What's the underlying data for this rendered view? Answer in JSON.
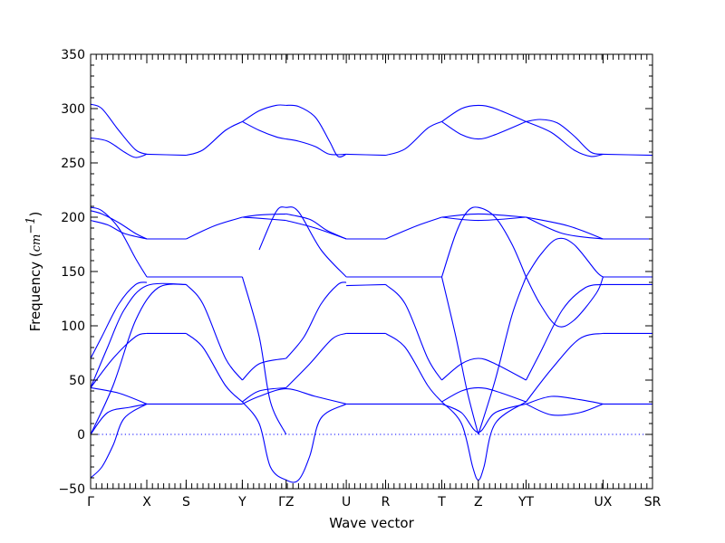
{
  "chart_data": {
    "type": "line",
    "title": "",
    "xlabel": "Wave vector",
    "ylabel_text": "Frequency (",
    "ylabel_unit_base": "cm",
    "ylabel_unit_exp": "−1",
    "ylabel_close": ")",
    "ylim": [
      -50,
      350
    ],
    "yticks": [
      -50,
      0,
      50,
      100,
      150,
      200,
      250,
      300,
      350
    ],
    "ytick_labels": [
      "−50",
      "0",
      "50",
      "100",
      "150",
      "200",
      "250",
      "300",
      "350"
    ],
    "xlim": [
      0,
      1
    ],
    "k_points": [
      {
        "label": "Γ",
        "x": 0.0
      },
      {
        "label": "X",
        "x": 0.1
      },
      {
        "label": "S",
        "x": 0.17
      },
      {
        "label": "Y",
        "x": 0.27
      },
      {
        "label": "ΓZ",
        "x": 0.348
      },
      {
        "label": "U",
        "x": 0.455
      },
      {
        "label": "R",
        "x": 0.525
      },
      {
        "label": "T",
        "x": 0.625
      },
      {
        "label": "Z",
        "x": 0.69
      },
      {
        "label": "YT",
        "x": 0.775
      },
      {
        "label": "UX",
        "x": 0.912
      },
      {
        "label": "SR",
        "x": 1.0
      }
    ],
    "grid": false,
    "series": [
      {
        "x": [
          0,
          0.02,
          0.05,
          0.08,
          0.1
        ],
        "y": [
          304,
          300,
          280,
          262,
          258
        ]
      },
      {
        "x": [
          0,
          0.03,
          0.06,
          0.08,
          0.1
        ],
        "y": [
          273,
          270,
          260,
          255,
          258
        ]
      },
      {
        "x": [
          0.1,
          0.17
        ],
        "y": [
          258,
          257
        ]
      },
      {
        "x": [
          0.17,
          0.2,
          0.24,
          0.27
        ],
        "y": [
          257,
          262,
          280,
          288
        ]
      },
      {
        "x": [
          0.27,
          0.3,
          0.33,
          0.348
        ],
        "y": [
          288,
          298,
          303,
          303
        ]
      },
      {
        "x": [
          0.27,
          0.3,
          0.33,
          0.348
        ],
        "y": [
          288,
          280,
          274,
          272
        ]
      },
      {
        "x": [
          0.348,
          0.37,
          0.4,
          0.425,
          0.44,
          0.455
        ],
        "y": [
          303,
          302,
          292,
          270,
          256,
          258
        ]
      },
      {
        "x": [
          0.348,
          0.37,
          0.4,
          0.425,
          0.455
        ],
        "y": [
          272,
          270,
          265,
          258,
          258
        ]
      },
      {
        "x": [
          0.455,
          0.525
        ],
        "y": [
          258,
          257
        ]
      },
      {
        "x": [
          0.525,
          0.56,
          0.6,
          0.625
        ],
        "y": [
          257,
          263,
          282,
          288
        ]
      },
      {
        "x": [
          0.625,
          0.66,
          0.69,
          0.72,
          0.775
        ],
        "y": [
          288,
          300,
          303,
          300,
          288
        ]
      },
      {
        "x": [
          0.625,
          0.66,
          0.69,
          0.72,
          0.775
        ],
        "y": [
          288,
          276,
          272,
          276,
          288
        ]
      },
      {
        "x": [
          0.775,
          0.8,
          0.83,
          0.86,
          0.89,
          0.912
        ],
        "y": [
          288,
          290,
          287,
          275,
          260,
          258
        ]
      },
      {
        "x": [
          0.775,
          0.82,
          0.86,
          0.89,
          0.912
        ],
        "y": [
          288,
          278,
          262,
          256,
          258
        ]
      },
      {
        "x": [
          0.912,
          1.0
        ],
        "y": [
          258,
          257
        ]
      },
      {
        "x": [
          0,
          0.02,
          0.05,
          0.08,
          0.1
        ],
        "y": [
          209,
          206,
          190,
          162,
          145
        ]
      },
      {
        "x": [
          0,
          0.02,
          0.05,
          0.08,
          0.1
        ],
        "y": [
          206,
          203,
          195,
          185,
          180
        ]
      },
      {
        "x": [
          0,
          0.03,
          0.06,
          0.1
        ],
        "y": [
          197,
          193,
          185,
          180
        ]
      },
      {
        "x": [
          0.1,
          0.17
        ],
        "y": [
          180,
          180
        ]
      },
      {
        "x": [
          0.17,
          0.22,
          0.27
        ],
        "y": [
          180,
          192,
          200
        ]
      },
      {
        "x": [
          0.27,
          0.3,
          0.348
        ],
        "y": [
          200,
          202,
          203
        ]
      },
      {
        "x": [
          0.27,
          0.3,
          0.348
        ],
        "y": [
          200,
          199,
          197
        ]
      },
      {
        "x": [
          0.348,
          0.39,
          0.42,
          0.455
        ],
        "y": [
          203,
          198,
          188,
          180
        ]
      },
      {
        "x": [
          0.348,
          0.4,
          0.455
        ],
        "y": [
          197,
          190,
          180
        ]
      },
      {
        "x": [
          0.455,
          0.525
        ],
        "y": [
          180,
          180
        ]
      },
      {
        "x": [
          0.525,
          0.58,
          0.625
        ],
        "y": [
          180,
          192,
          200
        ]
      },
      {
        "x": [
          0.625,
          0.69,
          0.775
        ],
        "y": [
          200,
          203,
          200
        ]
      },
      {
        "x": [
          0.625,
          0.69,
          0.775
        ],
        "y": [
          200,
          197,
          200
        ]
      },
      {
        "x": [
          0.775,
          0.85,
          0.912
        ],
        "y": [
          200,
          192,
          180
        ]
      },
      {
        "x": [
          0.775,
          0.84,
          0.912
        ],
        "y": [
          200,
          185,
          180
        ]
      },
      {
        "x": [
          0.912,
          1.0
        ],
        "y": [
          180,
          180
        ]
      },
      {
        "x": [
          0.1,
          0.17,
          0.27
        ],
        "y": [
          145,
          145,
          145
        ]
      },
      {
        "x": [
          0.27,
          0.3,
          0.32,
          0.348
        ],
        "y": [
          145,
          90,
          30,
          0
        ]
      },
      {
        "x": [
          0.3,
          0.33,
          0.348,
          0.37,
          0.41,
          0.455
        ],
        "y": [
          170,
          205,
          209,
          205,
          170,
          145
        ]
      },
      {
        "x": [
          0.455,
          0.525,
          0.625
        ],
        "y": [
          145,
          145,
          145
        ]
      },
      {
        "x": [
          0.625,
          0.65,
          0.67,
          0.69,
          0.72,
          0.75,
          0.775
        ],
        "y": [
          145,
          185,
          205,
          209,
          200,
          175,
          145
        ]
      },
      {
        "x": [
          0.625,
          0.65,
          0.67,
          0.69
        ],
        "y": [
          145,
          90,
          40,
          0
        ]
      },
      {
        "x": [
          0.69,
          0.72,
          0.75,
          0.775
        ],
        "y": [
          0,
          50,
          110,
          145
        ]
      },
      {
        "x": [
          0.775,
          0.8,
          0.83,
          0.86,
          0.9,
          0.912
        ],
        "y": [
          145,
          165,
          180,
          175,
          150,
          145
        ]
      },
      {
        "x": [
          0.775,
          0.8,
          0.83,
          0.86,
          0.9,
          0.912
        ],
        "y": [
          145,
          120,
          100,
          105,
          130,
          145
        ]
      },
      {
        "x": [
          0.912,
          1.0
        ],
        "y": [
          145,
          145
        ]
      },
      {
        "x": [
          0,
          0.02,
          0.05,
          0.08,
          0.1
        ],
        "y": [
          70,
          90,
          120,
          138,
          140
        ]
      },
      {
        "x": [
          0,
          0.03,
          0.06,
          0.1,
          0.17
        ],
        "y": [
          43,
          80,
          115,
          137,
          138
        ]
      },
      {
        "x": [
          0,
          0.04,
          0.08,
          0.12,
          0.17
        ],
        "y": [
          0,
          45,
          105,
          135,
          138
        ]
      },
      {
        "x": [
          0.17,
          0.2,
          0.24,
          0.27
        ],
        "y": [
          138,
          120,
          70,
          50
        ]
      },
      {
        "x": [
          0.27,
          0.3,
          0.348
        ],
        "y": [
          50,
          65,
          70
        ]
      },
      {
        "x": [
          0.348,
          0.38,
          0.41,
          0.44,
          0.455
        ],
        "y": [
          70,
          90,
          120,
          138,
          140
        ]
      },
      {
        "x": [
          0.455,
          0.525
        ],
        "y": [
          137,
          138
        ]
      },
      {
        "x": [
          0.525,
          0.56,
          0.6,
          0.625
        ],
        "y": [
          138,
          120,
          70,
          50
        ]
      },
      {
        "x": [
          0.625,
          0.66,
          0.69,
          0.72,
          0.775
        ],
        "y": [
          50,
          65,
          70,
          65,
          50
        ]
      },
      {
        "x": [
          0.775,
          0.8,
          0.84,
          0.88,
          0.912
        ],
        "y": [
          50,
          75,
          115,
          135,
          138
        ]
      },
      {
        "x": [
          0.912,
          1.0
        ],
        "y": [
          138,
          138
        ]
      },
      {
        "x": [
          0,
          0.04,
          0.08,
          0.1
        ],
        "y": [
          43,
          70,
          90,
          93
        ]
      },
      {
        "x": [
          0.1,
          0.17
        ],
        "y": [
          93,
          93
        ]
      },
      {
        "x": [
          0.17,
          0.2,
          0.24,
          0.27
        ],
        "y": [
          93,
          80,
          45,
          30
        ]
      },
      {
        "x": [
          0.27,
          0.3,
          0.348
        ],
        "y": [
          30,
          40,
          43
        ]
      },
      {
        "x": [
          0.348,
          0.39,
          0.43,
          0.455
        ],
        "y": [
          43,
          65,
          88,
          93
        ]
      },
      {
        "x": [
          0.455,
          0.525
        ],
        "y": [
          93,
          93
        ]
      },
      {
        "x": [
          0.525,
          0.56,
          0.6,
          0.625
        ],
        "y": [
          93,
          80,
          45,
          30
        ]
      },
      {
        "x": [
          0.625,
          0.66,
          0.69,
          0.72,
          0.775
        ],
        "y": [
          30,
          40,
          43,
          40,
          30
        ]
      },
      {
        "x": [
          0.775,
          0.82,
          0.87,
          0.912
        ],
        "y": [
          30,
          60,
          88,
          93
        ]
      },
      {
        "x": [
          0.912,
          1.0
        ],
        "y": [
          93,
          93
        ]
      },
      {
        "x": [
          0,
          0.05,
          0.1
        ],
        "y": [
          43,
          38,
          28
        ]
      },
      {
        "x": [
          0.1,
          0.17,
          0.27
        ],
        "y": [
          28,
          28,
          28
        ]
      },
      {
        "x": [
          0.27,
          0.3,
          0.348,
          0.4,
          0.455
        ],
        "y": [
          28,
          35,
          42,
          35,
          28
        ]
      },
      {
        "x": [
          0.455,
          0.525,
          0.625
        ],
        "y": [
          28,
          28,
          28
        ]
      },
      {
        "x": [
          0.625,
          0.66,
          0.69,
          0.72,
          0.775
        ],
        "y": [
          28,
          20,
          2,
          20,
          28
        ]
      },
      {
        "x": [
          0.775,
          0.82,
          0.87,
          0.912
        ],
        "y": [
          28,
          35,
          32,
          28
        ]
      },
      {
        "x": [
          0.775,
          0.82,
          0.87,
          0.912
        ],
        "y": [
          28,
          18,
          20,
          28
        ]
      },
      {
        "x": [
          0.912,
          1.0
        ],
        "y": [
          28,
          28
        ]
      },
      {
        "x": [
          0,
          0.02,
          0.04,
          0.06,
          0.1
        ],
        "y": [
          -40,
          -30,
          -10,
          15,
          28
        ]
      },
      {
        "x": [
          0.27,
          0.3,
          0.32,
          0.348,
          0.37,
          0.39,
          0.41,
          0.455
        ],
        "y": [
          30,
          10,
          -30,
          -42,
          -42,
          -20,
          15,
          28
        ]
      },
      {
        "x": [
          0.625,
          0.66,
          0.68,
          0.69,
          0.7,
          0.72,
          0.775
        ],
        "y": [
          30,
          10,
          -30,
          -42,
          -30,
          10,
          30
        ]
      },
      {
        "x": [
          0,
          0.03,
          0.07,
          0.1
        ],
        "y": [
          0,
          20,
          25,
          28
        ]
      }
    ]
  }
}
